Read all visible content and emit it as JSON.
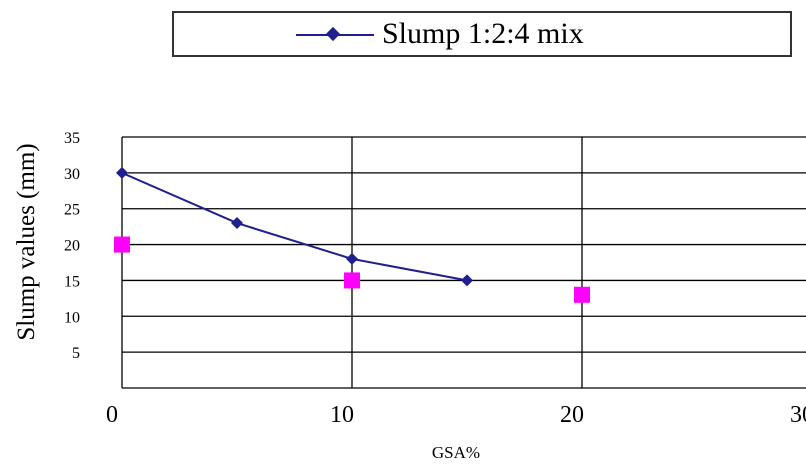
{
  "chart_data": {
    "type": "line",
    "xlabel": "GSA%",
    "ylabel": "Slump values (mm)",
    "xlim": [
      0,
      30
    ],
    "ylim": [
      0,
      35
    ],
    "x_ticks": [
      "0",
      "10",
      "20",
      "30"
    ],
    "y_ticks": [
      "5",
      "10",
      "15",
      "20",
      "25",
      "30",
      "35"
    ],
    "grid": true,
    "legend_position": "top",
    "series": [
      {
        "name": "Slump 1:2:4 mix",
        "color": "#1f1f8f",
        "marker": "diamond",
        "style": "line",
        "points": [
          [
            0,
            30
          ],
          [
            5,
            23
          ],
          [
            10,
            18
          ],
          [
            15,
            15
          ]
        ]
      },
      {
        "name": "",
        "color": "#ff00ff",
        "marker": "square",
        "style": "markers",
        "points": [
          [
            0,
            20
          ],
          [
            10,
            15
          ],
          [
            20,
            13
          ]
        ]
      }
    ]
  }
}
